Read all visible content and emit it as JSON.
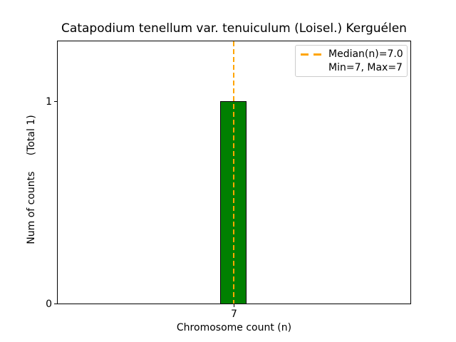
{
  "chart_data": {
    "type": "bar",
    "title": "Catapodium tenellum var. tenuiculum (Loisel.) Kerguélen",
    "xlabel": "Chromosome count (n)",
    "ylabel": "Num of counts     (Total 1)",
    "categories": [
      "7"
    ],
    "values": [
      1
    ],
    "total_counts": 1,
    "x_tick_labels": [
      "7"
    ],
    "y_tick_labels": [
      "0",
      "1"
    ],
    "ylim": [
      0,
      1.3
    ],
    "grid": false,
    "bar_color": "#008000",
    "bar_edge_color": "#000000",
    "median_line": {
      "value": 7.0,
      "color": "#ffa500",
      "style": "dashed",
      "orientation": "vertical"
    },
    "legend": {
      "position": "upper right",
      "entries": [
        {
          "label": "Median(n)=7.0",
          "handle": "orange-dashed-line"
        },
        {
          "label": "Min=7, Max=7",
          "handle": "none"
        }
      ]
    }
  }
}
